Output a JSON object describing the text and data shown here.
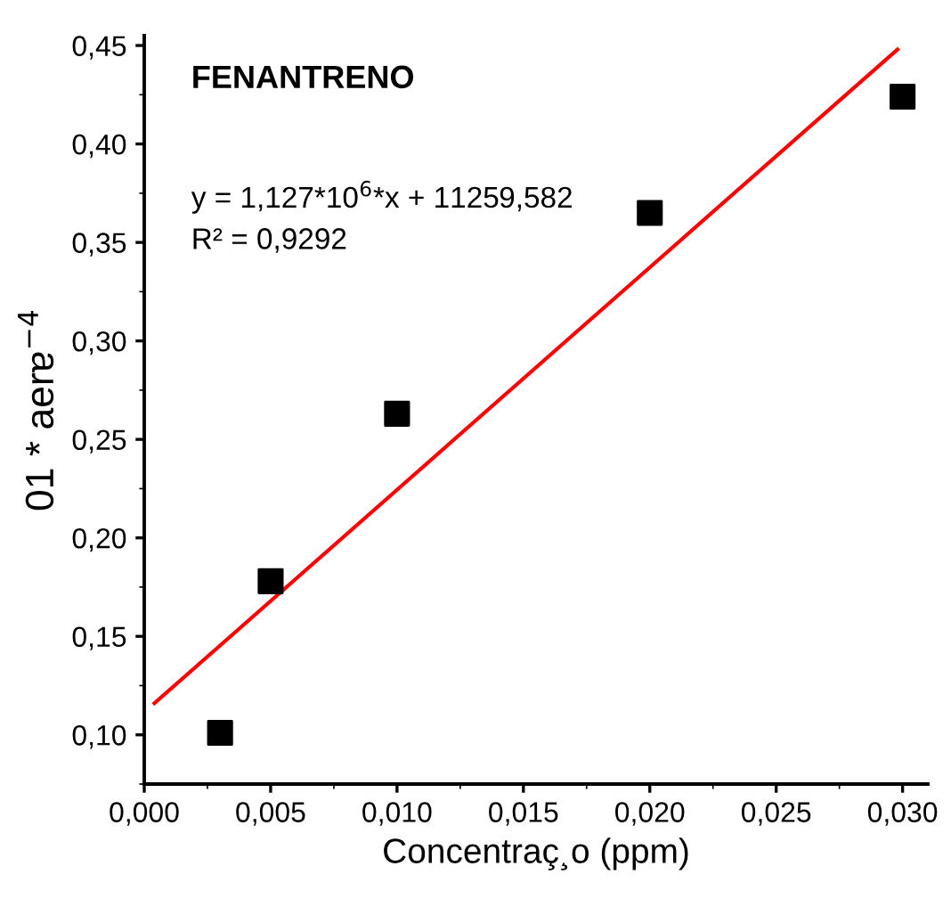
{
  "chart_data": {
    "type": "scatter",
    "title": "FENANTRENO",
    "xlabel": "Concentraç¸o (ppm)",
    "ylabel": "01 * aerɐ$^{−4}$",
    "annotations": [
      "y = 1,127*10$^{6}$*x + 11259,582",
      "R² = 0,9292"
    ],
    "series": [
      {
        "color": "#000000",
        "marker": "square",
        "x": [
          0.003,
          0.005,
          0.01,
          0.02,
          0.03
        ],
        "values": [
          0.101,
          0.178,
          0.263,
          0.365,
          0.424
        ]
      },
      {
        "type": "line",
        "color": "#ff0000",
        "marker": "none",
        "line_style": "solid",
        "x": [
          0.0004,
          0.0298
        ],
        "values": [
          0.116,
          0.448
        ]
      }
    ],
    "xlim": [
      0,
      0.031
    ],
    "ylim": [
      0.075,
      0.455
    ],
    "xticks": [
      {
        "value": 0,
        "label": "0,000"
      },
      {
        "value": 0.005,
        "label": "0,005"
      },
      {
        "value": 0.01,
        "label": "0,010"
      },
      {
        "value": 0.015,
        "label": "0,015"
      },
      {
        "value": 0.02,
        "label": "0,020"
      },
      {
        "value": 0.025,
        "label": "0,025"
      },
      {
        "value": 0.03,
        "label": "0,030"
      }
    ],
    "yticks": [
      {
        "value": 0.1,
        "label": "0,10"
      },
      {
        "value": 0.15,
        "label": "0,15"
      },
      {
        "value": 0.2,
        "label": "0,20"
      },
      {
        "value": 0.25,
        "label": "0,25"
      },
      {
        "value": 0.3,
        "label": "0,30"
      },
      {
        "value": 0.35,
        "label": "0,35"
      },
      {
        "value": 0.4,
        "label": "0,40"
      },
      {
        "value": 0.45,
        "label": "0,45"
      }
    ],
    "grid": false,
    "legend": false
  }
}
